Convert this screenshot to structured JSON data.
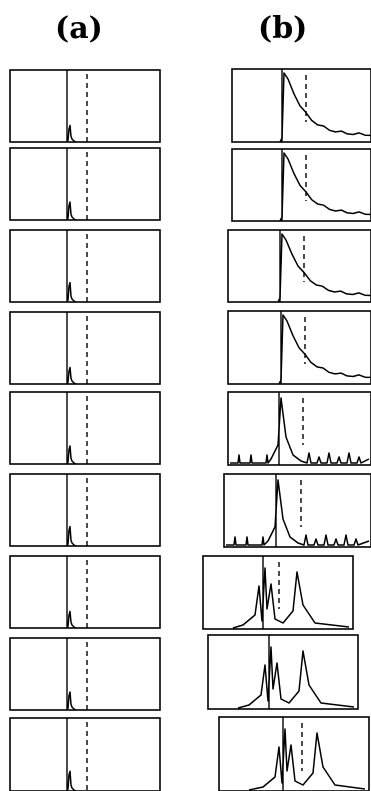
{
  "chart_data": {
    "type": "line",
    "panels": [
      {
        "label": "(a)",
        "rows": 9
      },
      {
        "label": "(b)",
        "rows": 9
      }
    ],
    "xlabel": "",
    "ylabel": "",
    "grid": false,
    "legend": "none",
    "reference_lines": [
      "solid",
      "dashed"
    ]
  }
}
